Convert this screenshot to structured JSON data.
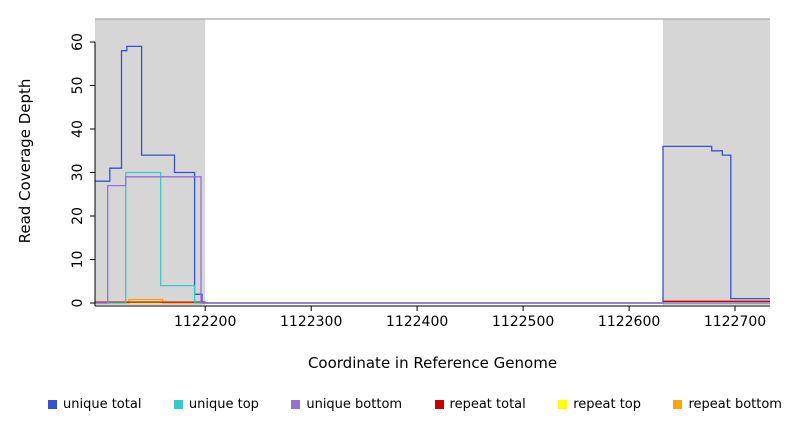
{
  "chart_data": {
    "type": "line",
    "title": "",
    "xlabel": "Coordinate in Reference Genome",
    "ylabel": "Read Coverage Depth",
    "xlim": [
      1122096,
      1122733
    ],
    "ylim": [
      0,
      60
    ],
    "x_ticks": [
      1122200,
      1122300,
      1122400,
      1122500,
      1122600,
      1122700
    ],
    "y_ticks": [
      0,
      10,
      20,
      30,
      40,
      50,
      60
    ],
    "grid": false,
    "legend_position": "bottom",
    "shaded_regions": [
      {
        "x0": 1122096,
        "x1": 1122200,
        "color": "#D6D6D6"
      },
      {
        "x0": 1122632,
        "x1": 1122733,
        "color": "#D6D6D6"
      }
    ],
    "top_border_color": "#A8A8A8",
    "axis_color": "#000000",
    "draw_order": [
      4,
      5,
      3,
      0,
      1,
      2
    ],
    "series": [
      {
        "name": "unique total",
        "color": "#3351D1",
        "points": [
          [
            1122096,
            28
          ],
          [
            1122110,
            28
          ],
          [
            1122110,
            31
          ],
          [
            1122121,
            31
          ],
          [
            1122121,
            58
          ],
          [
            1122126,
            58
          ],
          [
            1122126,
            59
          ],
          [
            1122140,
            59
          ],
          [
            1122140,
            34
          ],
          [
            1122171,
            34
          ],
          [
            1122171,
            30
          ],
          [
            1122190,
            30
          ],
          [
            1122190,
            2
          ],
          [
            1122197,
            2
          ],
          [
            1122197,
            0
          ],
          [
            1122632,
            0
          ],
          [
            1122632,
            36
          ],
          [
            1122678,
            36
          ],
          [
            1122678,
            35
          ],
          [
            1122688,
            35
          ],
          [
            1122688,
            34
          ],
          [
            1122696,
            34
          ],
          [
            1122696,
            1
          ],
          [
            1122733,
            1
          ]
        ]
      },
      {
        "name": "unique top",
        "color": "#33CCCC",
        "points": [
          [
            1122096,
            0
          ],
          [
            1122125,
            0
          ],
          [
            1122125,
            30
          ],
          [
            1122158,
            30
          ],
          [
            1122158,
            4
          ],
          [
            1122190,
            4
          ],
          [
            1122190,
            0
          ],
          [
            1122733,
            0
          ]
        ]
      },
      {
        "name": "unique bottom",
        "color": "#9370DB",
        "points": [
          [
            1122096,
            0
          ],
          [
            1122108,
            0
          ],
          [
            1122108,
            27
          ],
          [
            1122125,
            27
          ],
          [
            1122125,
            29
          ],
          [
            1122196,
            29
          ],
          [
            1122196,
            0
          ],
          [
            1122733,
            0
          ]
        ]
      },
      {
        "name": "repeat total",
        "color": "#CC0000",
        "points": [
          [
            1122096,
            0.2
          ],
          [
            1122200,
            0.2
          ],
          [
            1122200,
            0
          ],
          [
            1122632,
            0
          ],
          [
            1122632,
            0.4
          ],
          [
            1122733,
            0.4
          ]
        ]
      },
      {
        "name": "repeat top",
        "color": "#FFFF00",
        "points": [
          [
            1122096,
            0
          ],
          [
            1122733,
            0
          ]
        ]
      },
      {
        "name": "repeat bottom",
        "color": "#FFA500",
        "points": [
          [
            1122096,
            0
          ],
          [
            1122128,
            0
          ],
          [
            1122128,
            0.8
          ],
          [
            1122160,
            0.8
          ],
          [
            1122160,
            0
          ],
          [
            1122733,
            0
          ]
        ]
      }
    ]
  }
}
